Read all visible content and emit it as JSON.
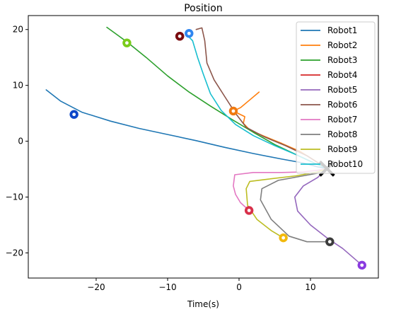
{
  "chart_data": {
    "type": "line",
    "title": "Position",
    "xlabel": "Time(s)",
    "ylabel": "",
    "xlim": [
      -29.5,
      19.5
    ],
    "ylim": [
      -24.5,
      22.5
    ],
    "xticks": [
      -20,
      -10,
      0,
      10
    ],
    "yticks": [
      -20,
      -10,
      0,
      10,
      20
    ],
    "grid": false,
    "legend_position": "top-right",
    "target": {
      "x": 12.3,
      "y": -4.9,
      "color": "#000000"
    },
    "series": [
      {
        "name": "Robot1",
        "color": "#1f77b4",
        "points": [
          [
            -27,
            9.2
          ],
          [
            -25,
            7.2
          ],
          [
            -22,
            5.2
          ],
          [
            -18,
            3.6
          ],
          [
            -14,
            2.3
          ],
          [
            -10,
            1.2
          ],
          [
            -6,
            0.1
          ],
          [
            -2,
            -1.1
          ],
          [
            2,
            -2.2
          ],
          [
            6,
            -3.2
          ],
          [
            9,
            -3.9
          ],
          [
            11,
            -4.6
          ],
          [
            12.3,
            -4.9
          ]
        ],
        "robot": {
          "x": -23.1,
          "y": 4.8,
          "ring": "#0d47c9"
        }
      },
      {
        "name": "Robot2",
        "color": "#ff7f0e",
        "points": [
          [
            2.8,
            8.8
          ],
          [
            1.5,
            7.4
          ],
          [
            0.2,
            6
          ],
          [
            -0.8,
            5.4
          ],
          [
            0.8,
            4.4
          ],
          [
            0.6,
            3.2
          ],
          [
            1.5,
            2
          ],
          [
            3.5,
            0.9
          ],
          [
            6,
            -0.4
          ],
          [
            8.5,
            -1.8
          ],
          [
            10.5,
            -3.4
          ],
          [
            12.3,
            -4.9
          ]
        ],
        "robot": {
          "x": -0.8,
          "y": 5.4,
          "ring": "#f07a10"
        }
      },
      {
        "name": "Robot3",
        "color": "#2ca02c",
        "points": [
          [
            -18.5,
            20.4
          ],
          [
            -17,
            19
          ],
          [
            -15.5,
            17.6
          ],
          [
            -13,
            15
          ],
          [
            -10,
            11.7
          ],
          [
            -7,
            8.8
          ],
          [
            -4,
            6.3
          ],
          [
            -1,
            3.9
          ],
          [
            2,
            1.6
          ],
          [
            5,
            -0.6
          ],
          [
            8,
            -2.4
          ],
          [
            10.5,
            -3.9
          ],
          [
            12.3,
            -4.9
          ]
        ],
        "robot": {
          "x": -15.7,
          "y": 17.6,
          "ring": "#7acc1a"
        }
      },
      {
        "name": "Robot4",
        "color": "#d62728",
        "points": [],
        "robot": {
          "x": -8.3,
          "y": 18.8,
          "ring": "#7a0c10"
        }
      },
      {
        "name": "Robot5",
        "color": "#9467bd",
        "points": [
          [
            17.2,
            -22.2
          ],
          [
            14.5,
            -19.2
          ],
          [
            12.5,
            -17.5
          ],
          [
            10,
            -15
          ],
          [
            8.2,
            -12.5
          ],
          [
            7.8,
            -10
          ],
          [
            9,
            -8
          ],
          [
            11,
            -6.5
          ],
          [
            12.3,
            -4.9
          ]
        ],
        "robot": {
          "x": 17.2,
          "y": -22.2,
          "ring": "#8a3be0"
        }
      },
      {
        "name": "Robot6",
        "color": "#8c564b",
        "points": [
          [
            -6,
            20
          ],
          [
            -5.2,
            20.3
          ],
          [
            -4.8,
            18
          ],
          [
            -4.5,
            14
          ],
          [
            -3.5,
            11
          ],
          [
            -2,
            8
          ],
          [
            -0.5,
            5
          ],
          [
            1,
            2.5
          ],
          [
            3.5,
            0.8
          ],
          [
            6.5,
            -0.8
          ],
          [
            9.5,
            -2.6
          ],
          [
            12.3,
            -4.9
          ]
        ],
        "robot": {
          "x": -8.3,
          "y": 18.8,
          "ring": "#7a0c10"
        }
      },
      {
        "name": "Robot7",
        "color": "#e377c2",
        "points": [
          [
            1.4,
            -12.4
          ],
          [
            0.2,
            -11
          ],
          [
            -0.5,
            -9.5
          ],
          [
            -0.8,
            -8
          ],
          [
            -0.6,
            -6
          ],
          [
            2,
            -5.6
          ],
          [
            6,
            -5.6
          ],
          [
            9,
            -5.5
          ],
          [
            11,
            -5.2
          ],
          [
            12.3,
            -4.9
          ]
        ],
        "robot": {
          "x": 1.4,
          "y": -12.4,
          "ring": "#d8304a"
        }
      },
      {
        "name": "Robot8",
        "color": "#7f7f7f",
        "points": [
          [
            12.7,
            -18
          ],
          [
            9.5,
            -18
          ],
          [
            7,
            -17
          ],
          [
            4.5,
            -14
          ],
          [
            3,
            -10.5
          ],
          [
            3.2,
            -8.5
          ],
          [
            5.5,
            -7
          ],
          [
            9,
            -6.2
          ],
          [
            11.5,
            -5.6
          ],
          [
            12.3,
            -4.9
          ]
        ],
        "robot": {
          "x": 12.7,
          "y": -18.0,
          "ring": "#3c3c3c"
        }
      },
      {
        "name": "Robot9",
        "color": "#bcbd22",
        "points": [
          [
            6.2,
            -17.3
          ],
          [
            4.5,
            -16
          ],
          [
            2.5,
            -14
          ],
          [
            1.2,
            -11.5
          ],
          [
            1,
            -8.5
          ],
          [
            1.5,
            -7.2
          ],
          [
            4,
            -6.8
          ],
          [
            8,
            -6.2
          ],
          [
            11,
            -5.5
          ],
          [
            12.3,
            -4.9
          ]
        ],
        "robot": {
          "x": 6.2,
          "y": -17.3,
          "ring": "#f2b90c"
        }
      },
      {
        "name": "Robot10",
        "color": "#17becf",
        "points": [
          [
            -7.5,
            19.3
          ],
          [
            -6.5,
            18
          ],
          [
            -5.8,
            15
          ],
          [
            -5,
            12
          ],
          [
            -4,
            8.5
          ],
          [
            -2.5,
            5.5
          ],
          [
            -0.5,
            3
          ],
          [
            2,
            1
          ],
          [
            5,
            -0.8
          ],
          [
            8,
            -2.4
          ],
          [
            10.5,
            -3.9
          ],
          [
            12.3,
            -4.9
          ]
        ],
        "robot": {
          "x": -7.0,
          "y": 19.3,
          "ring": "#2f86f0"
        }
      }
    ]
  }
}
